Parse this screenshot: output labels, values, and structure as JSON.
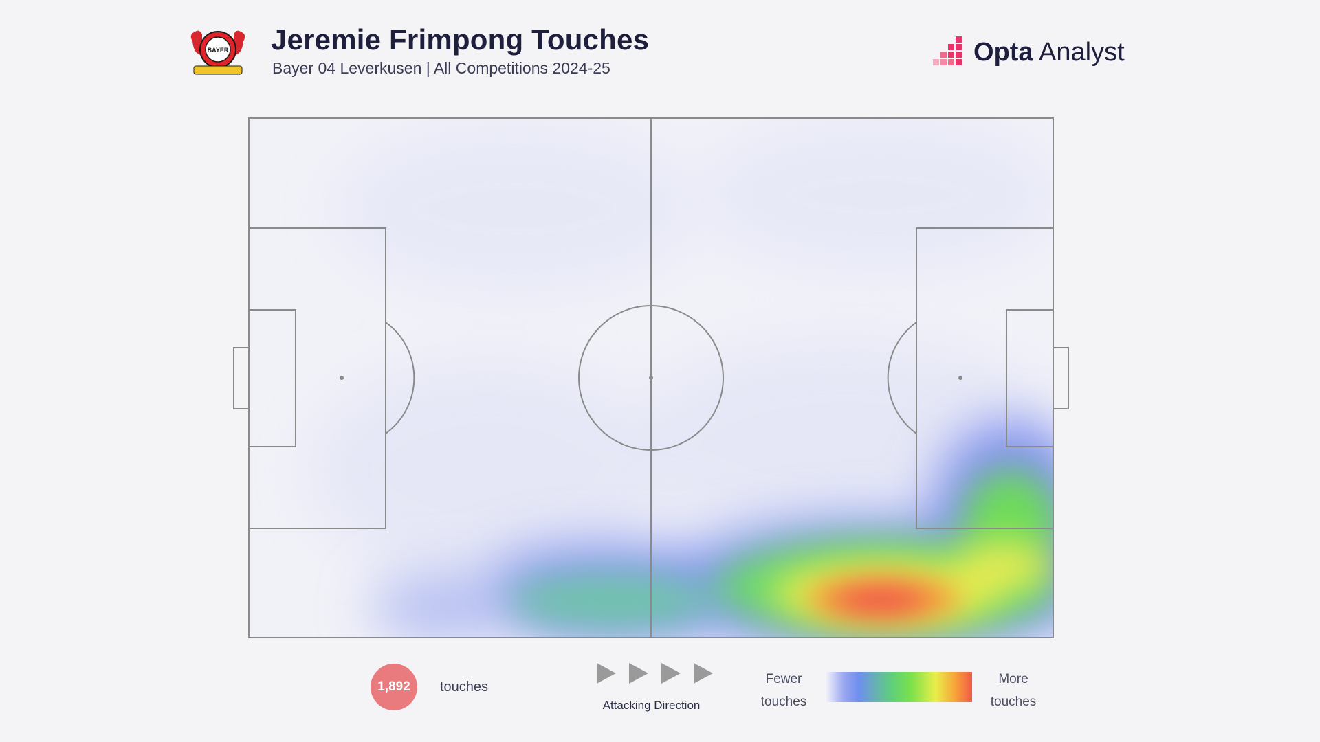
{
  "header": {
    "title": "Jeremie Frimpong Touches",
    "subtitle": "Bayer 04 Leverkusen | All Competitions 2024-25",
    "crest_icon": "bayer-leverkusen-crest-icon",
    "crest_text": "BAYER",
    "brand_bold": "Opta",
    "brand_light": " Analyst",
    "brand_icon": "opta-analyst-logo-icon"
  },
  "chart_data": {
    "type": "heatmap",
    "title": "Jeremie Frimpong Touches",
    "subtitle": "Bayer 04 Leverkusen | All Competitions 2024-25",
    "pitch": "football pitch, attacking left to right",
    "total_touches": "1,892",
    "touches_label": "touches",
    "hotspots": [
      {
        "zone": "right flank, opponent half, wide of box edge",
        "intensity": 1.0
      },
      {
        "zone": "right flank, attacking third near touchline",
        "intensity": 0.8
      },
      {
        "zone": "right flank, right edge of opponent penalty area",
        "intensity": 0.65
      },
      {
        "zone": "right flank, just inside own half",
        "intensity": 0.45
      },
      {
        "zone": "right flank, own half",
        "intensity": 0.3
      }
    ],
    "colors": {
      "low": "#9aa7ef",
      "mid": "#7be04a",
      "high": "#f25a46",
      "lines": "#8a8a8a"
    }
  },
  "legend": {
    "count": "1,892",
    "count_label": "touches",
    "direction_label": "Attacking Direction",
    "direction_icon": "play-arrow-icon",
    "fewer_line1": "Fewer",
    "fewer_line2": "touches",
    "more_line1": "More",
    "more_line2": "touches"
  }
}
